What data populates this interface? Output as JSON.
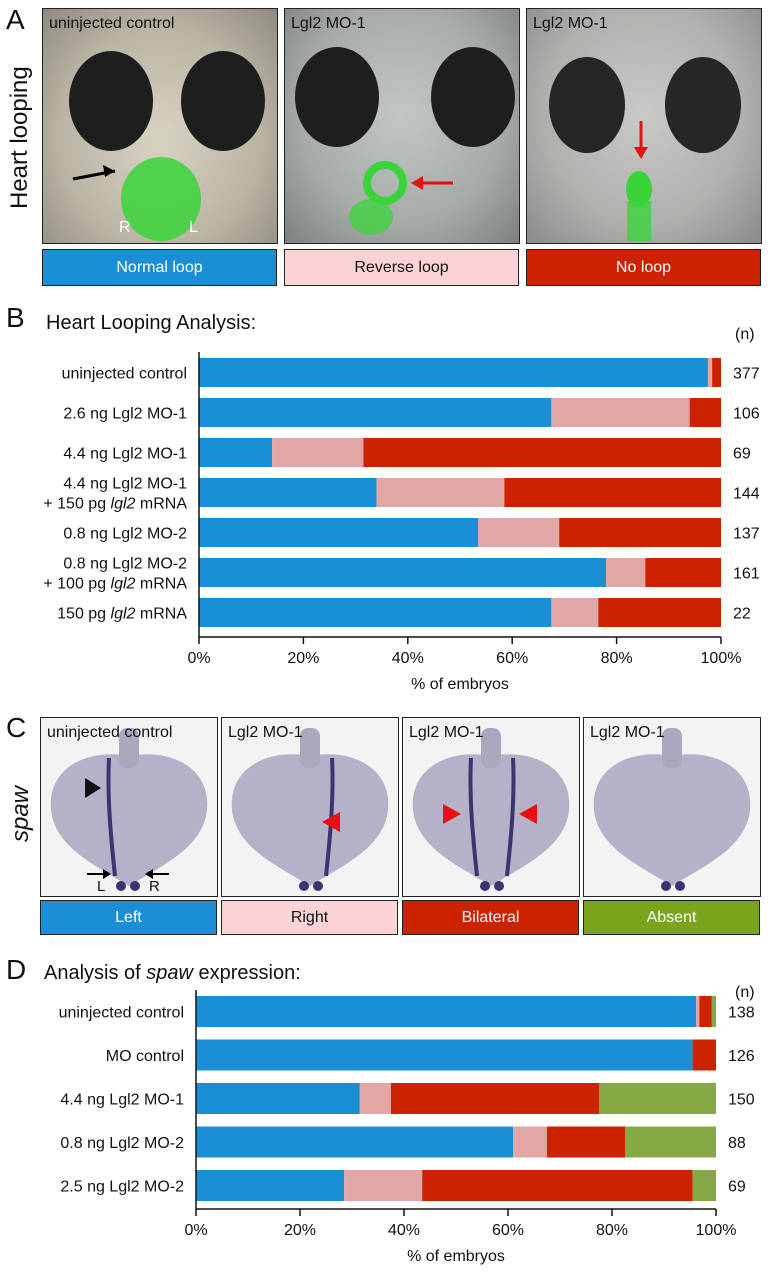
{
  "panelA": {
    "letter": "A",
    "side_label": "Heart looping",
    "images": [
      {
        "label": "uninjected control",
        "marks": {
          "R": "R",
          "L": "L"
        }
      },
      {
        "label": "Lgl2 MO-1"
      },
      {
        "label": "Lgl2 MO-1"
      }
    ],
    "categories": [
      {
        "label": "Normal loop",
        "color": "#1a8fd6"
      },
      {
        "label": "Reverse loop",
        "color": "#fbd3d6"
      },
      {
        "label": "No loop",
        "color": "#cc2200"
      }
    ]
  },
  "panelB": {
    "letter": "B",
    "title": "Heart Looping Analysis:",
    "n_header": "(n)"
  },
  "panelC": {
    "letter": "C",
    "side_label": "spaw",
    "images": [
      {
        "label": "uninjected control",
        "marks": {
          "L": "L",
          "R": "R"
        }
      },
      {
        "label": "Lgl2 MO-1"
      },
      {
        "label": "Lgl2 MO-1"
      },
      {
        "label": "Lgl2 MO-1"
      }
    ],
    "categories": [
      {
        "label": "Left",
        "color": "#1a8fd6"
      },
      {
        "label": "Right",
        "color": "#fbd3d6"
      },
      {
        "label": "Bilateral",
        "color": "#cc2200"
      },
      {
        "label": "Absent",
        "color": "#7aa51a"
      }
    ]
  },
  "panelD": {
    "letter": "D",
    "title_prefix": "Analysis of ",
    "title_italic": "spaw",
    "title_suffix": " expression:",
    "n_header": "(n)"
  },
  "chart_data": [
    {
      "type": "bar",
      "orientation": "horizontal",
      "stacked": true,
      "title": "Heart Looping Analysis:",
      "xlabel": "% of embryos",
      "xlim": [
        0,
        100
      ],
      "xticks": [
        "0%",
        "20%",
        "40%",
        "60%",
        "80%",
        "100%"
      ],
      "colors": [
        "#1a8fd6",
        "#e3a6a6",
        "#cc2200"
      ],
      "categories": [
        [
          "uninjected control"
        ],
        [
          "2.6 ng Lgl2 MO-1"
        ],
        [
          "4.4 ng Lgl2 MO-1"
        ],
        [
          "4.4 ng Lgl2 MO-1",
          "+ 150 pg |lgl2| mRNA"
        ],
        [
          "0.8 ng Lgl2 MO-2"
        ],
        [
          "0.8 ng Lgl2 MO-2",
          "+ 100 pg |lgl2| mRNA"
        ],
        [
          "150 pg |lgl2| mRNA"
        ]
      ],
      "n": [
        "377",
        "106",
        "69",
        "144",
        "137",
        "161",
        "22"
      ],
      "series": [
        {
          "name": "Normal loop",
          "values": [
            97.5,
            67.5,
            14,
            34,
            53.5,
            78,
            67.5
          ]
        },
        {
          "name": "Reverse loop",
          "values": [
            0.8,
            26.5,
            17.5,
            24.5,
            15.5,
            7.5,
            9
          ]
        },
        {
          "name": "No loop",
          "values": [
            1.7,
            6,
            68.5,
            41.5,
            31,
            14.5,
            23.5
          ]
        }
      ]
    },
    {
      "type": "bar",
      "orientation": "horizontal",
      "stacked": true,
      "title": "Analysis of spaw expression:",
      "xlabel": "% of embryos",
      "xlim": [
        0,
        100
      ],
      "xticks": [
        "0%",
        "20%",
        "40%",
        "60%",
        "80%",
        "100%"
      ],
      "colors": [
        "#1a8fd6",
        "#e3a6a6",
        "#cc2200",
        "#86a845"
      ],
      "categories": [
        [
          "uninjected control"
        ],
        [
          "MO control"
        ],
        [
          "4.4 ng Lgl2 MO-1"
        ],
        [
          "0.8 ng Lgl2 MO-2"
        ],
        [
          "2.5 ng Lgl2 MO-2"
        ]
      ],
      "n": [
        "138",
        "126",
        "150",
        "88",
        "69"
      ],
      "series": [
        {
          "name": "Left",
          "values": [
            96.2,
            95.5,
            31.5,
            61,
            28.5
          ]
        },
        {
          "name": "Right",
          "values": [
            0.6,
            0,
            6,
            6.5,
            15
          ]
        },
        {
          "name": "Bilateral",
          "values": [
            2.4,
            4.5,
            40,
            15,
            52
          ]
        },
        {
          "name": "Absent",
          "values": [
            0.8,
            0,
            22.5,
            17.5,
            4.5
          ]
        }
      ]
    }
  ]
}
